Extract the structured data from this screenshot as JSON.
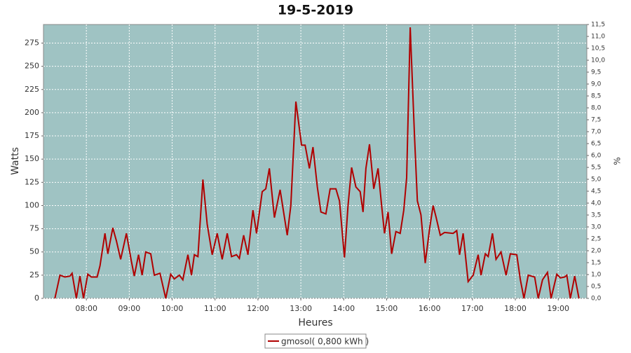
{
  "chart_data": {
    "type": "line",
    "title": "19-5-2019",
    "x_label": "Heures",
    "y_label": "Watts",
    "y2_label": "%",
    "background": "#9fc3c3",
    "grid": true,
    "legend": "bottom",
    "xlim": [
      420,
      1180
    ],
    "xticks": [
      {
        "value": 480,
        "label": "08:00"
      },
      {
        "value": 540,
        "label": "09:00"
      },
      {
        "value": 600,
        "label": "10:00"
      },
      {
        "value": 660,
        "label": "11:00"
      },
      {
        "value": 720,
        "label": "12:00"
      },
      {
        "value": 780,
        "label": "13:00"
      },
      {
        "value": 840,
        "label": "14:00"
      },
      {
        "value": 900,
        "label": "15:00"
      },
      {
        "value": 960,
        "label": "16:00"
      },
      {
        "value": 1020,
        "label": "17:00"
      },
      {
        "value": 1080,
        "label": "18:00"
      },
      {
        "value": 1140,
        "label": "19:00"
      }
    ],
    "ylim": [
      0,
      295
    ],
    "yticks": [
      0,
      25,
      50,
      75,
      100,
      125,
      150,
      175,
      200,
      225,
      250,
      275
    ],
    "y2lim": [
      0,
      11.5
    ],
    "y2ticks": [
      {
        "value": 0,
        "label": "0,0"
      },
      {
        "value": 0.5,
        "label": "0,5"
      },
      {
        "value": 1,
        "label": "1,0"
      },
      {
        "value": 1.5,
        "label": "1,5"
      },
      {
        "value": 2,
        "label": "2,0"
      },
      {
        "value": 2.5,
        "label": "2,5"
      },
      {
        "value": 3,
        "label": "3,0"
      },
      {
        "value": 3.5,
        "label": "3,5"
      },
      {
        "value": 4,
        "label": "4,0"
      },
      {
        "value": 4.5,
        "label": "4,5"
      },
      {
        "value": 5,
        "label": "5,0"
      },
      {
        "value": 5.5,
        "label": "5,5"
      },
      {
        "value": 6,
        "label": "6,0"
      },
      {
        "value": 6.5,
        "label": "6,5"
      },
      {
        "value": 7,
        "label": "7,0"
      },
      {
        "value": 7.5,
        "label": "7,5"
      },
      {
        "value": 8,
        "label": "8,0"
      },
      {
        "value": 8.5,
        "label": "8,5"
      },
      {
        "value": 9,
        "label": "9,0"
      },
      {
        "value": 9.5,
        "label": "9,5"
      },
      {
        "value": 10,
        "label": "10,0"
      },
      {
        "value": 10.5,
        "label": "10,5"
      },
      {
        "value": 11,
        "label": "11,0"
      },
      {
        "value": 11.5,
        "label": "11,5"
      }
    ],
    "x": [
      436,
      443,
      450,
      457,
      460,
      466,
      471,
      476,
      482,
      487,
      495,
      499,
      506,
      510,
      517,
      522,
      528,
      536,
      543,
      547,
      553,
      558,
      563,
      570,
      575,
      583,
      591,
      598,
      603,
      610,
      615,
      622,
      627,
      631,
      636,
      643,
      649,
      656,
      663,
      670,
      677,
      683,
      690,
      694,
      700,
      706,
      713,
      718,
      726,
      731,
      736,
      743,
      751,
      761,
      766,
      773,
      781,
      786,
      792,
      797,
      803,
      808,
      815,
      821,
      829,
      834,
      841,
      846,
      851,
      857,
      863,
      867,
      871,
      876,
      882,
      888,
      893,
      897,
      902,
      907,
      913,
      919,
      924,
      928,
      933,
      939,
      943,
      948,
      954,
      960,
      965,
      969,
      975,
      981,
      993,
      998,
      1002,
      1007,
      1014,
      1021,
      1028,
      1032,
      1038,
      1042,
      1048,
      1053,
      1060,
      1067,
      1073,
      1082,
      1087,
      1092,
      1098,
      1107,
      1112,
      1118,
      1125,
      1130,
      1138,
      1143,
      1149,
      1152,
      1157,
      1163,
      1169
    ],
    "series": [
      {
        "name": "gmosol( 0,800 kWh )",
        "color": "#b00000",
        "values": [
          0,
          25,
          23,
          24,
          27,
          0,
          24,
          0,
          26,
          23,
          23,
          35,
          70,
          48,
          76,
          62,
          42,
          70,
          40,
          24,
          47,
          25,
          50,
          48,
          25,
          27,
          0,
          26,
          21,
          25,
          20,
          47,
          25,
          47,
          45,
          128,
          80,
          47,
          70,
          42,
          70,
          45,
          47,
          43,
          68,
          47,
          95,
          70,
          115,
          118,
          140,
          87,
          117,
          68,
          100,
          212,
          165,
          165,
          140,
          163,
          120,
          93,
          91,
          118,
          118,
          105,
          44,
          100,
          141,
          120,
          115,
          93,
          140,
          166,
          118,
          140,
          100,
          70,
          93,
          48,
          72,
          70,
          95,
          130,
          292,
          175,
          105,
          90,
          38,
          75,
          100,
          88,
          68,
          71,
          70,
          73,
          47,
          70,
          18,
          25,
          47,
          25,
          48,
          45,
          70,
          42,
          50,
          25,
          48,
          47,
          20,
          0,
          25,
          23,
          0,
          20,
          28,
          0,
          26,
          22,
          23,
          25,
          0,
          24,
          0
        ]
      }
    ]
  }
}
